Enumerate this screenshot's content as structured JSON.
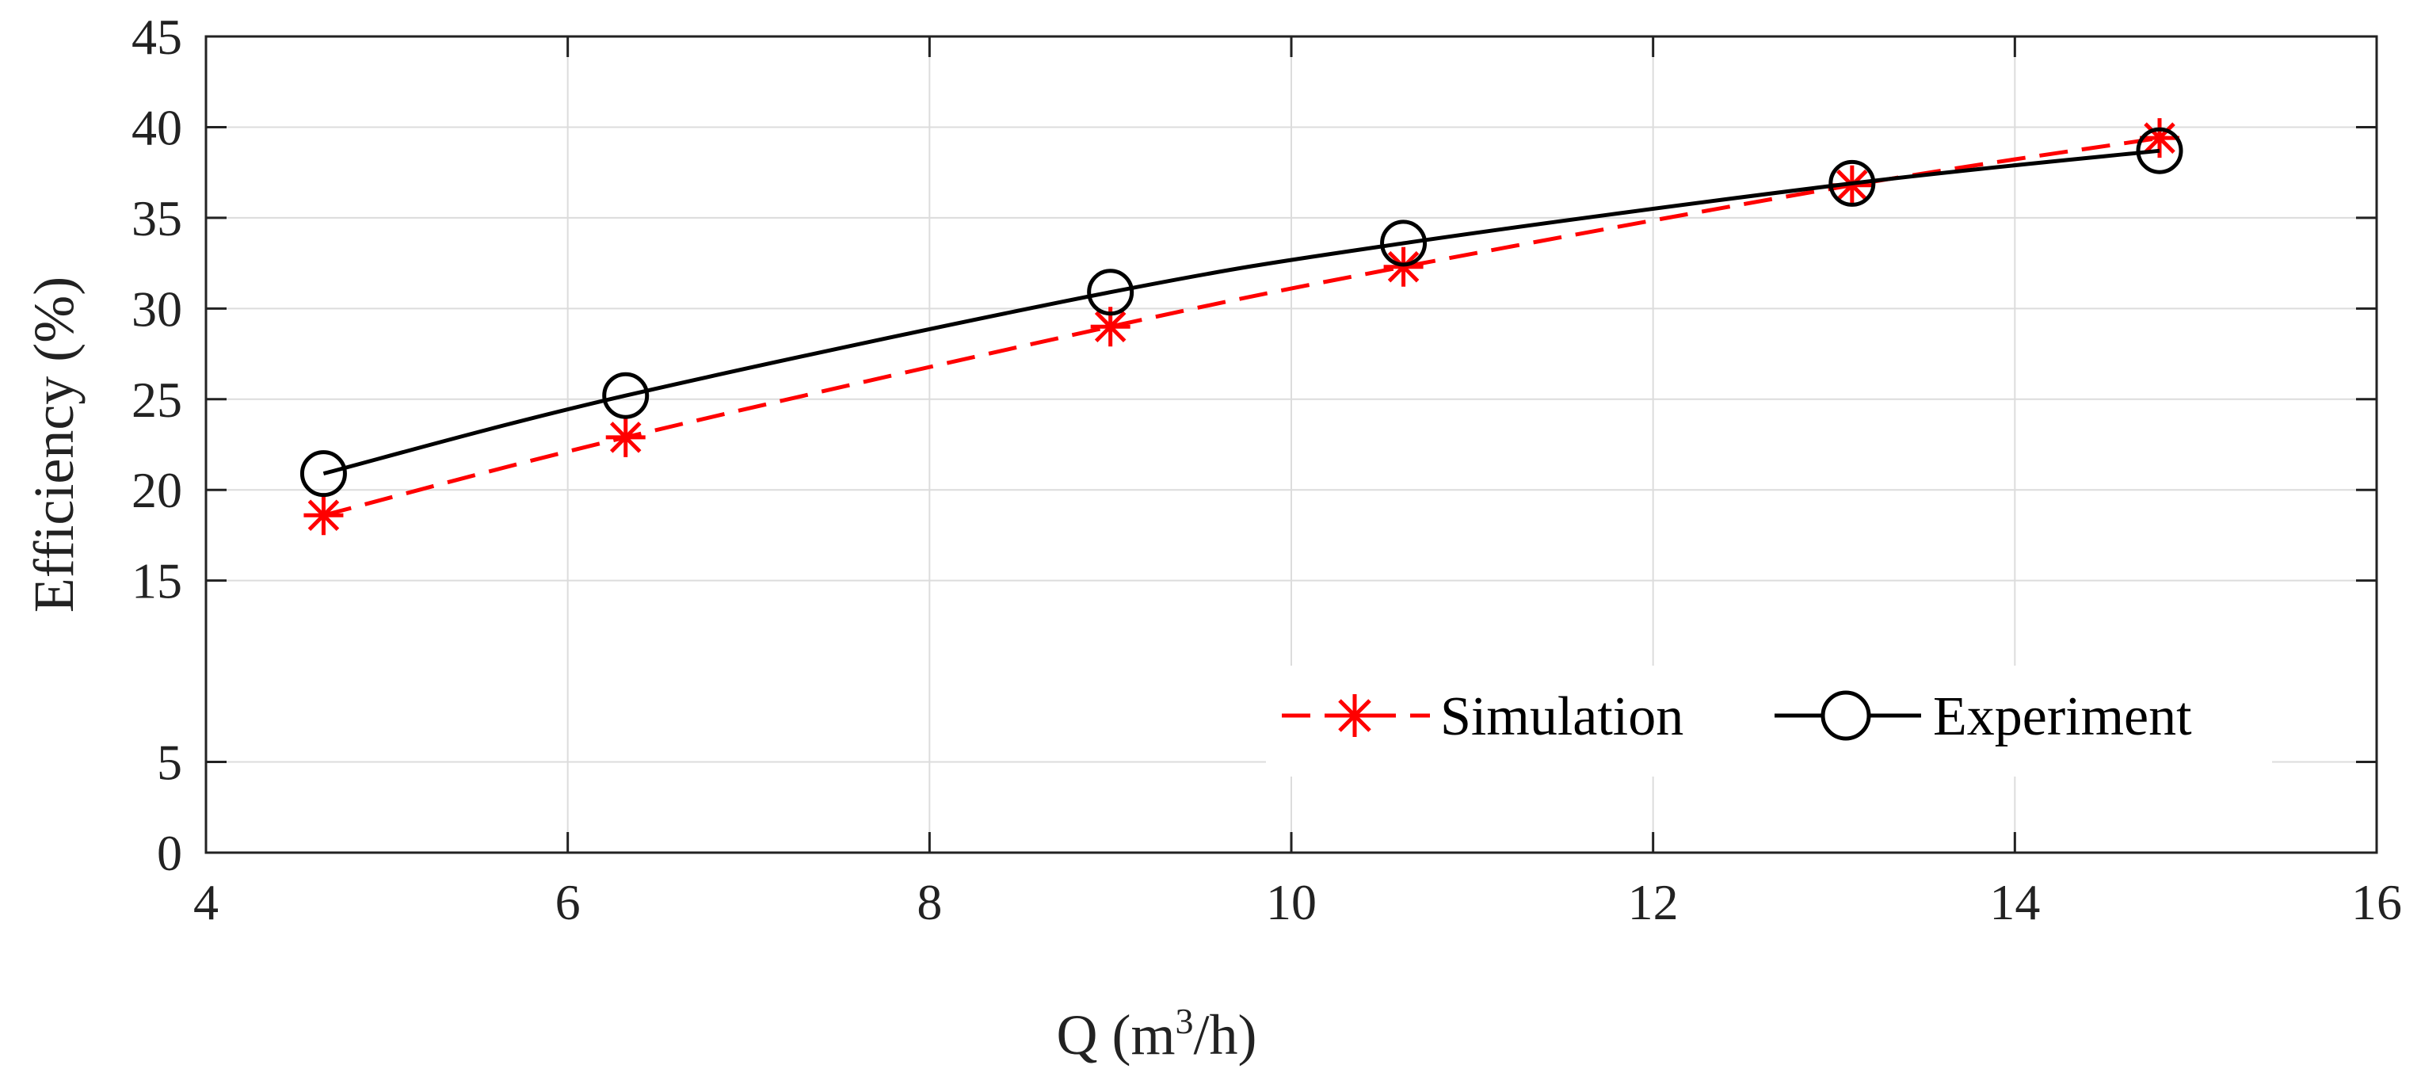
{
  "chart_data": {
    "type": "line",
    "title": "",
    "xlabel": {
      "main": "Q (m",
      "sup": "3",
      "tail": "/h)"
    },
    "ylabel": "Efficiency (%)",
    "xlim": [
      4,
      16
    ],
    "ylim": [
      0,
      45
    ],
    "xticks": [
      4,
      6,
      8,
      10,
      12,
      14,
      16
    ],
    "yticks": [
      0,
      5,
      15,
      20,
      25,
      30,
      35,
      40,
      45
    ],
    "x_tick_labels": [
      "4",
      "6",
      "8",
      "10",
      "12",
      "14",
      "16"
    ],
    "y_tick_labels": [
      "0",
      "5",
      "15",
      "20",
      "25",
      "30",
      "35",
      "40",
      "45"
    ],
    "grid": true,
    "legend_position": "bottom-right",
    "series": [
      {
        "name": "Simulation",
        "color": "#ff0000",
        "line_style": "dashed",
        "marker": "asterisk",
        "x": [
          4.65,
          6.32,
          9.0,
          10.62,
          13.1,
          14.8
        ],
        "y": [
          18.6,
          22.9,
          29.0,
          32.3,
          36.8,
          39.4
        ]
      },
      {
        "name": "Experiment",
        "color": "#000000",
        "line_style": "solid",
        "marker": "circle",
        "x": [
          4.65,
          6.32,
          9.0,
          10.62,
          13.1,
          14.8
        ],
        "y": [
          20.9,
          25.2,
          30.9,
          33.6,
          36.9,
          38.7
        ]
      }
    ]
  }
}
